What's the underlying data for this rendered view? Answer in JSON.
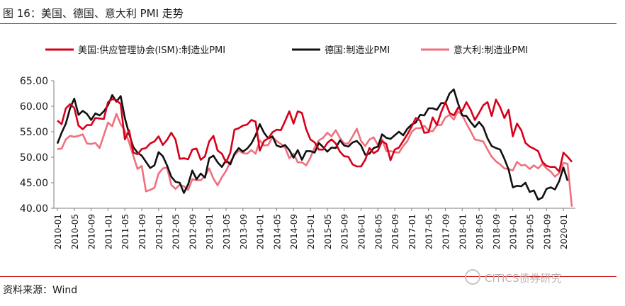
{
  "figure": {
    "title": "图 16：美国、德国、意大利 PMI 走势",
    "source": "资料来源：Wind",
    "watermark": "CITICS债券研究"
  },
  "chart_data": {
    "type": "line",
    "ylim": [
      40,
      65
    ],
    "yticks": [
      "40.00",
      "45.00",
      "50.00",
      "55.00",
      "60.00",
      "65.00"
    ],
    "xticks": [
      "2010-01",
      "2010-05",
      "2010-09",
      "2011-01",
      "2011-05",
      "2011-09",
      "2012-01",
      "2012-05",
      "2012-09",
      "2013-01",
      "2013-05",
      "2013-09",
      "2014-01",
      "2014-05",
      "2014-09",
      "2015-01",
      "2015-05",
      "2015-09",
      "2016-01",
      "2016-05",
      "2016-09",
      "2017-01",
      "2017-05",
      "2017-09",
      "2018-01",
      "2018-05",
      "2018-09",
      "2019-01",
      "2019-05",
      "2019-09",
      "2020-01"
    ],
    "x_start": "2010-01",
    "legend_position": "top",
    "grid": false,
    "series": [
      {
        "name": "美国:供应管理协会(ISM):制造业PMI",
        "color": "#d7001a",
        "values": [
          57.2,
          56.5,
          59.6,
          60.4,
          59.7,
          56.2,
          55.5,
          56.3,
          56.3,
          57.7,
          57.6,
          57.5,
          60.8,
          61.4,
          61.2,
          60.4,
          53.5,
          55.3,
          50.9,
          50.6,
          51.6,
          51.8,
          52.7,
          53.1,
          54.1,
          52.4,
          53.4,
          54.8,
          53.5,
          49.7,
          49.8,
          49.6,
          51.5,
          51.7,
          49.5,
          50.2,
          53.1,
          54.2,
          51.3,
          50.7,
          49.0,
          50.9,
          55.4,
          55.7,
          56.2,
          56.4,
          57.3,
          57.0,
          51.3,
          53.2,
          53.7,
          54.9,
          55.4,
          55.3,
          57.1,
          59.0,
          56.6,
          59.0,
          58.7,
          55.5,
          53.5,
          52.9,
          51.5,
          51.5,
          52.8,
          53.5,
          52.7,
          51.1,
          50.2,
          50.1,
          48.6,
          48.2,
          48.2,
          49.5,
          51.8,
          50.8,
          51.3,
          53.2,
          52.6,
          49.4,
          51.5,
          51.9,
          53.2,
          54.5,
          56.0,
          57.7,
          57.2,
          54.8,
          54.9,
          57.8,
          56.3,
          58.8,
          60.8,
          58.7,
          58.2,
          59.7,
          59.1,
          60.8,
          59.3,
          57.3,
          58.7,
          60.2,
          60.8,
          58.1,
          61.3,
          59.8,
          57.7,
          59.3,
          54.1,
          56.6,
          55.3,
          52.8,
          52.1,
          51.7,
          51.2,
          49.1,
          48.3,
          48.1,
          48.1,
          47.2,
          50.9,
          50.1,
          49.1
        ]
      },
      {
        "name": "德国:制造业PMI",
        "color": "#111111",
        "values": [
          52.7,
          54.8,
          56.6,
          59.6,
          61.5,
          58.3,
          59.1,
          58.5,
          57.3,
          58.6,
          58.2,
          59.0,
          60.2,
          62.2,
          60.9,
          62.0,
          57.7,
          54.6,
          52.0,
          50.9,
          50.3,
          49.1,
          47.9,
          48.4,
          51.0,
          50.2,
          48.4,
          46.2,
          45.2,
          45.0,
          43.0,
          44.7,
          47.4,
          45.7,
          46.8,
          46.0,
          49.8,
          50.3,
          49.0,
          48.1,
          49.4,
          48.6,
          50.7,
          51.8,
          51.1,
          51.7,
          52.7,
          54.3,
          56.5,
          54.8,
          53.7,
          54.1,
          52.3,
          52.0,
          52.4,
          51.4,
          49.9,
          51.4,
          49.5,
          51.2,
          51.2,
          50.9,
          52.8,
          52.0,
          51.1,
          51.9,
          51.8,
          53.3,
          52.3,
          52.1,
          52.9,
          53.2,
          52.3,
          50.5,
          50.7,
          51.8,
          52.1,
          54.5,
          53.8,
          53.6,
          54.3,
          55.0,
          54.3,
          55.6,
          56.4,
          56.8,
          58.3,
          58.2,
          59.6,
          59.6,
          59.3,
          60.6,
          60.6,
          62.5,
          63.3,
          60.6,
          58.2,
          58.1,
          56.9,
          55.9,
          56.9,
          55.9,
          53.7,
          52.2,
          51.8,
          51.5,
          49.7,
          47.6,
          44.1,
          44.4,
          44.3,
          45.0,
          43.2,
          43.5,
          41.7,
          42.1,
          43.8,
          44.1,
          43.7,
          45.3,
          48.0,
          45.4
        ]
      },
      {
        "name": "意大利:制造业PMI",
        "color": "#f0707e",
        "values": [
          51.6,
          51.7,
          53.5,
          54.2,
          54.0,
          54.2,
          54.5,
          52.7,
          52.6,
          52.8,
          51.8,
          54.3,
          56.8,
          56.1,
          58.5,
          56.5,
          55.2,
          52.9,
          50.3,
          47.7,
          48.3,
          43.3,
          43.6,
          44.0,
          46.8,
          47.8,
          48.0,
          44.6,
          43.8,
          44.6,
          44.3,
          43.6,
          45.7,
          45.5,
          45.5,
          46.3,
          47.8,
          45.8,
          44.5,
          46.1,
          47.3,
          49.1,
          50.4,
          51.3,
          50.8,
          50.7,
          51.4,
          50.7,
          53.3,
          52.3,
          52.4,
          54.0,
          53.2,
          52.6,
          51.9,
          49.8,
          50.7,
          49.0,
          49.0,
          48.4,
          49.9,
          51.9,
          53.3,
          53.8,
          54.8,
          54.1,
          55.3,
          53.8,
          52.7,
          52.7,
          54.1,
          55.6,
          53.2,
          52.2,
          53.5,
          53.9,
          52.4,
          53.5,
          51.2,
          51.2,
          51.0,
          50.9,
          52.2,
          53.2,
          55.0,
          55.7,
          55.7,
          56.2,
          55.2,
          55.1,
          56.3,
          56.3,
          57.8,
          58.3,
          57.4,
          59.0,
          58.3,
          56.6,
          55.1,
          53.5,
          53.3,
          53.1,
          51.5,
          50.1,
          49.2,
          48.6,
          47.8,
          47.7,
          47.4,
          49.1,
          48.4,
          48.5,
          47.7,
          48.4,
          47.8,
          48.7,
          47.8,
          47.2,
          46.2,
          46.9,
          48.9,
          48.7,
          40.3
        ]
      }
    ]
  }
}
